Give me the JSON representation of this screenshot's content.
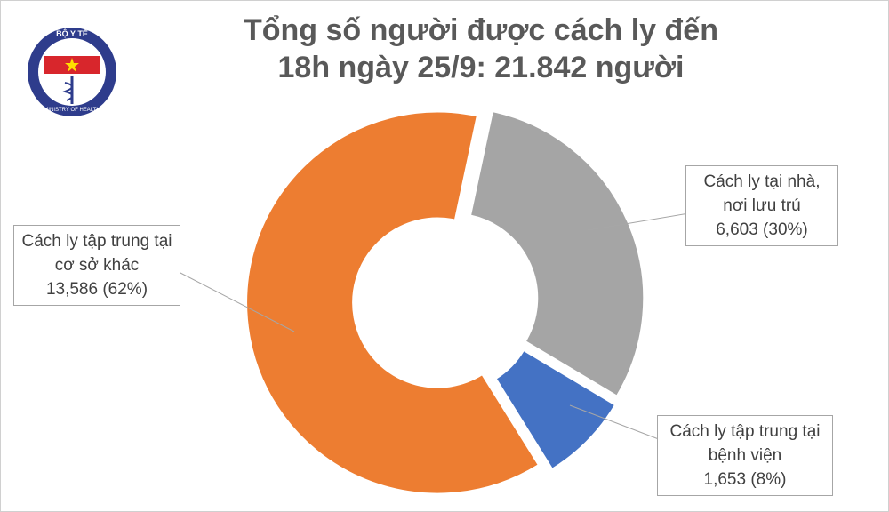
{
  "chart_data": {
    "type": "donut",
    "title": "Tổng số người được cách ly đến 18h ngày 25/9: 21.842 người",
    "categories": [
      "Cách ly tại nhà, nơi lưu trú",
      "Cách ly tập trung tại bệnh viện",
      "Cách ly tập trung tại cơ sở khác"
    ],
    "values": [
      6603,
      1653,
      13586
    ],
    "value_labels": [
      "6,603 (30%)",
      "1,653 (8%)",
      "13,586 (62%)"
    ],
    "colors": [
      "#a5a5a5",
      "#4472c4",
      "#ed7d31"
    ]
  },
  "logo": {
    "top_text": "BỘ Y TẾ",
    "bottom_text": "MINISTRY OF HEALTH"
  }
}
